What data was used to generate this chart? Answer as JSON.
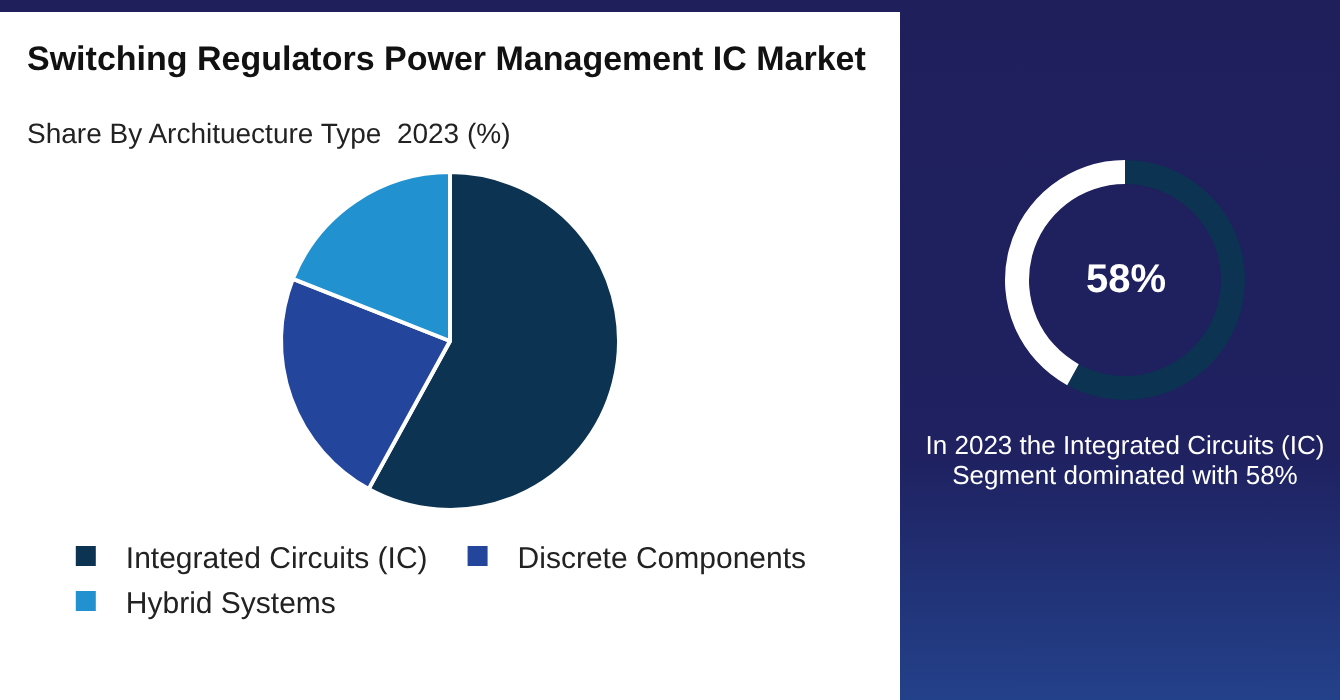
{
  "chart_data": [
    {
      "type": "pie",
      "title": "Switching Regulators Power Management IC Market",
      "subtitle": "Share By Archituecture Type  2023 (%)",
      "categories": [
        "Integrated Circuits (IC)",
        "Discrete Components",
        "Hybrid Systems"
      ],
      "values": [
        58,
        23,
        19
      ],
      "colors": [
        "#0c3352",
        "#23459c",
        "#2191cf"
      ],
      "legend": "bottom"
    },
    {
      "type": "donut",
      "categories": [
        null,
        null
      ],
      "values": [
        58,
        42
      ],
      "colors": [
        "#0c3352",
        "#ffffff"
      ],
      "value_labels": [
        "58%",
        null
      ],
      "annotations": [
        "In 2023 the Integrated Circuits (IC) Segment dominated with 58%"
      ]
    }
  ]
}
